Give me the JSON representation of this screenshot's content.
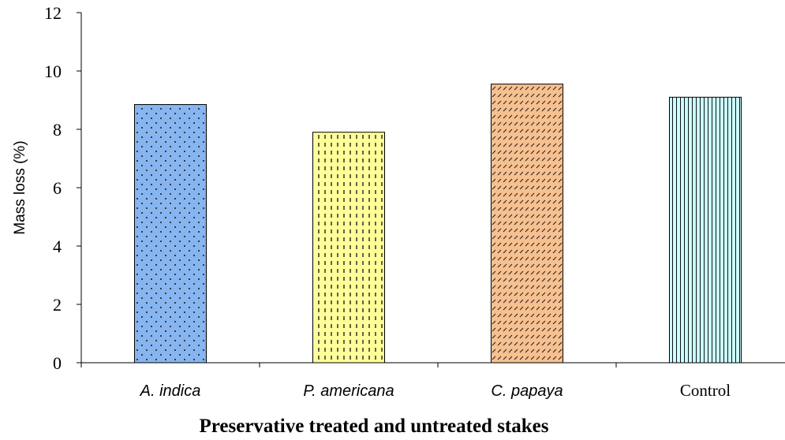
{
  "chart_data": {
    "type": "bar",
    "title": "",
    "xlabel": "Preservative treated and untreated stakes",
    "ylabel": "Mass loss (%)",
    "ylim": [
      0,
      12
    ],
    "yticks": [
      0,
      2,
      4,
      6,
      8,
      10,
      12
    ],
    "grid": false,
    "categories": [
      "A. indica",
      "P. americana",
      "C. papaya",
      "Control"
    ],
    "category_italic": [
      true,
      true,
      true,
      false
    ],
    "values": [
      8.85,
      7.9,
      9.55,
      9.1
    ],
    "bar_fills": [
      "#87b5f0",
      "#ffff99",
      "#f7c08f",
      "#ccffff"
    ],
    "bar_patterns": [
      "diamond-checker",
      "dashed-vertical",
      "diagonal-hatch",
      "vertical-lines"
    ]
  }
}
